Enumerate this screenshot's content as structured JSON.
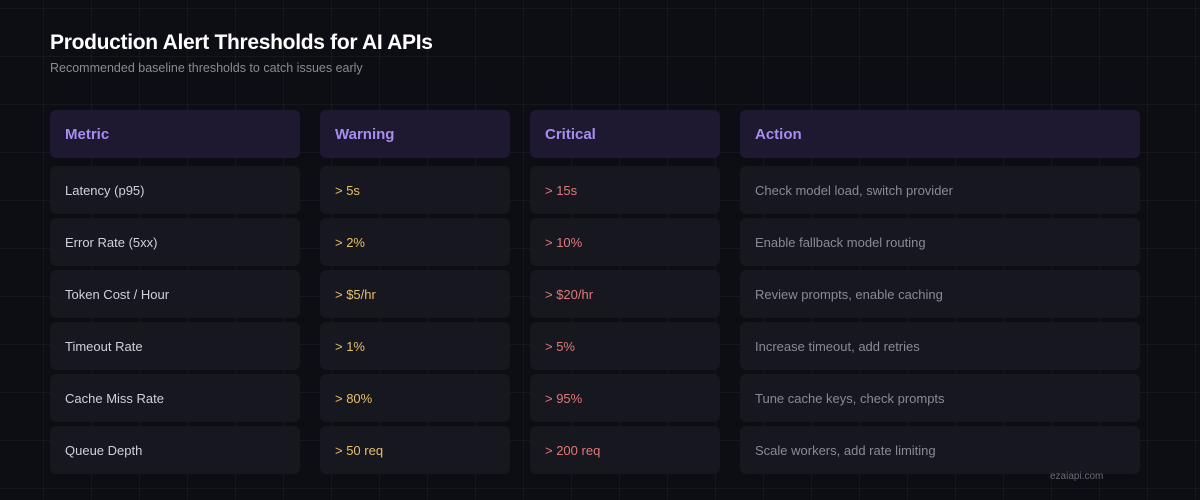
{
  "title": "Production Alert Thresholds for AI APIs",
  "subtitle": "Recommended baseline thresholds to catch issues early",
  "columns": [
    "Metric",
    "Warning",
    "Critical",
    "Action"
  ],
  "rows": [
    [
      "Latency (p95)",
      "> 5s",
      "> 15s",
      "Check model load, switch provider"
    ],
    [
      "Error Rate (5xx)",
      "> 2%",
      "> 10%",
      "Enable fallback model routing"
    ],
    [
      "Token Cost / Hour",
      "> $5/hr",
      "> $20/hr",
      "Review prompts, enable caching"
    ],
    [
      "Timeout Rate",
      "> 1%",
      "> 5%",
      "Increase timeout, add retries"
    ],
    [
      "Cache Miss Rate",
      "> 80%",
      "> 95%",
      "Tune cache keys, check prompts"
    ],
    [
      "Queue Depth",
      "> 50 req",
      "> 200 req",
      "Scale workers, add rate limiting"
    ]
  ],
  "watermark": "ezaiapi.com",
  "colors": {
    "header_text": "#a98cf0",
    "warning": "#e6c06a",
    "critical": "#e07a7a"
  }
}
